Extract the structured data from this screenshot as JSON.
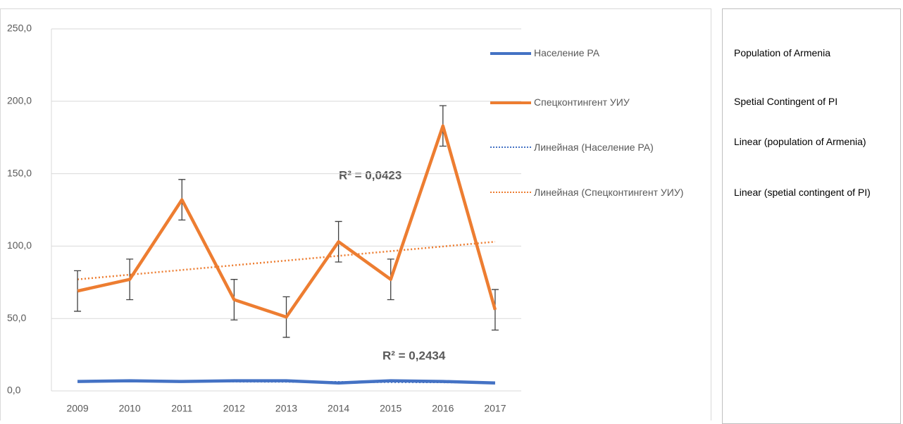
{
  "chart_data": {
    "type": "line",
    "categories": [
      "2009",
      "2010",
      "2011",
      "2012",
      "2013",
      "2014",
      "2015",
      "2016",
      "2017"
    ],
    "series": [
      {
        "name": "Население РА",
        "color": "#4472c4",
        "values": [
          6.5,
          7,
          6.5,
          7,
          7,
          5.5,
          7,
          6.5,
          5.5
        ]
      },
      {
        "name": "Спецконтингент УИУ",
        "color": "#ed7d31",
        "values": [
          69,
          77,
          132,
          63,
          51,
          103,
          77,
          183,
          56
        ],
        "errors": [
          14,
          14,
          14,
          14,
          14,
          14,
          14,
          14,
          14
        ]
      }
    ],
    "trendlines": [
      {
        "name": "Линейная (Население РА)",
        "color": "#4472c4",
        "start": 6.8,
        "end": 5.8
      },
      {
        "name": "Линейная (Спецконтингент УИУ)",
        "color": "#ed7d31",
        "start": 77,
        "end": 103
      }
    ],
    "annotations": [
      "R² = 0,0423",
      "R² = 0,2434"
    ],
    "ylim": [
      0,
      250
    ],
    "yticks": [
      {
        "value": 0,
        "label": "0,0"
      },
      {
        "value": 50,
        "label": "50,0"
      },
      {
        "value": 100,
        "label": "100,0"
      },
      {
        "value": 150,
        "label": "150,0"
      },
      {
        "value": 200,
        "label": "200,0"
      },
      {
        "value": 250,
        "label": "250,0"
      }
    ],
    "grid": true
  },
  "translations": [
    "Population of Armenia",
    "Spetial Contingent of PI",
    "Linear (population of Armenia)",
    "Linear (spetial contingent of PI)"
  ]
}
